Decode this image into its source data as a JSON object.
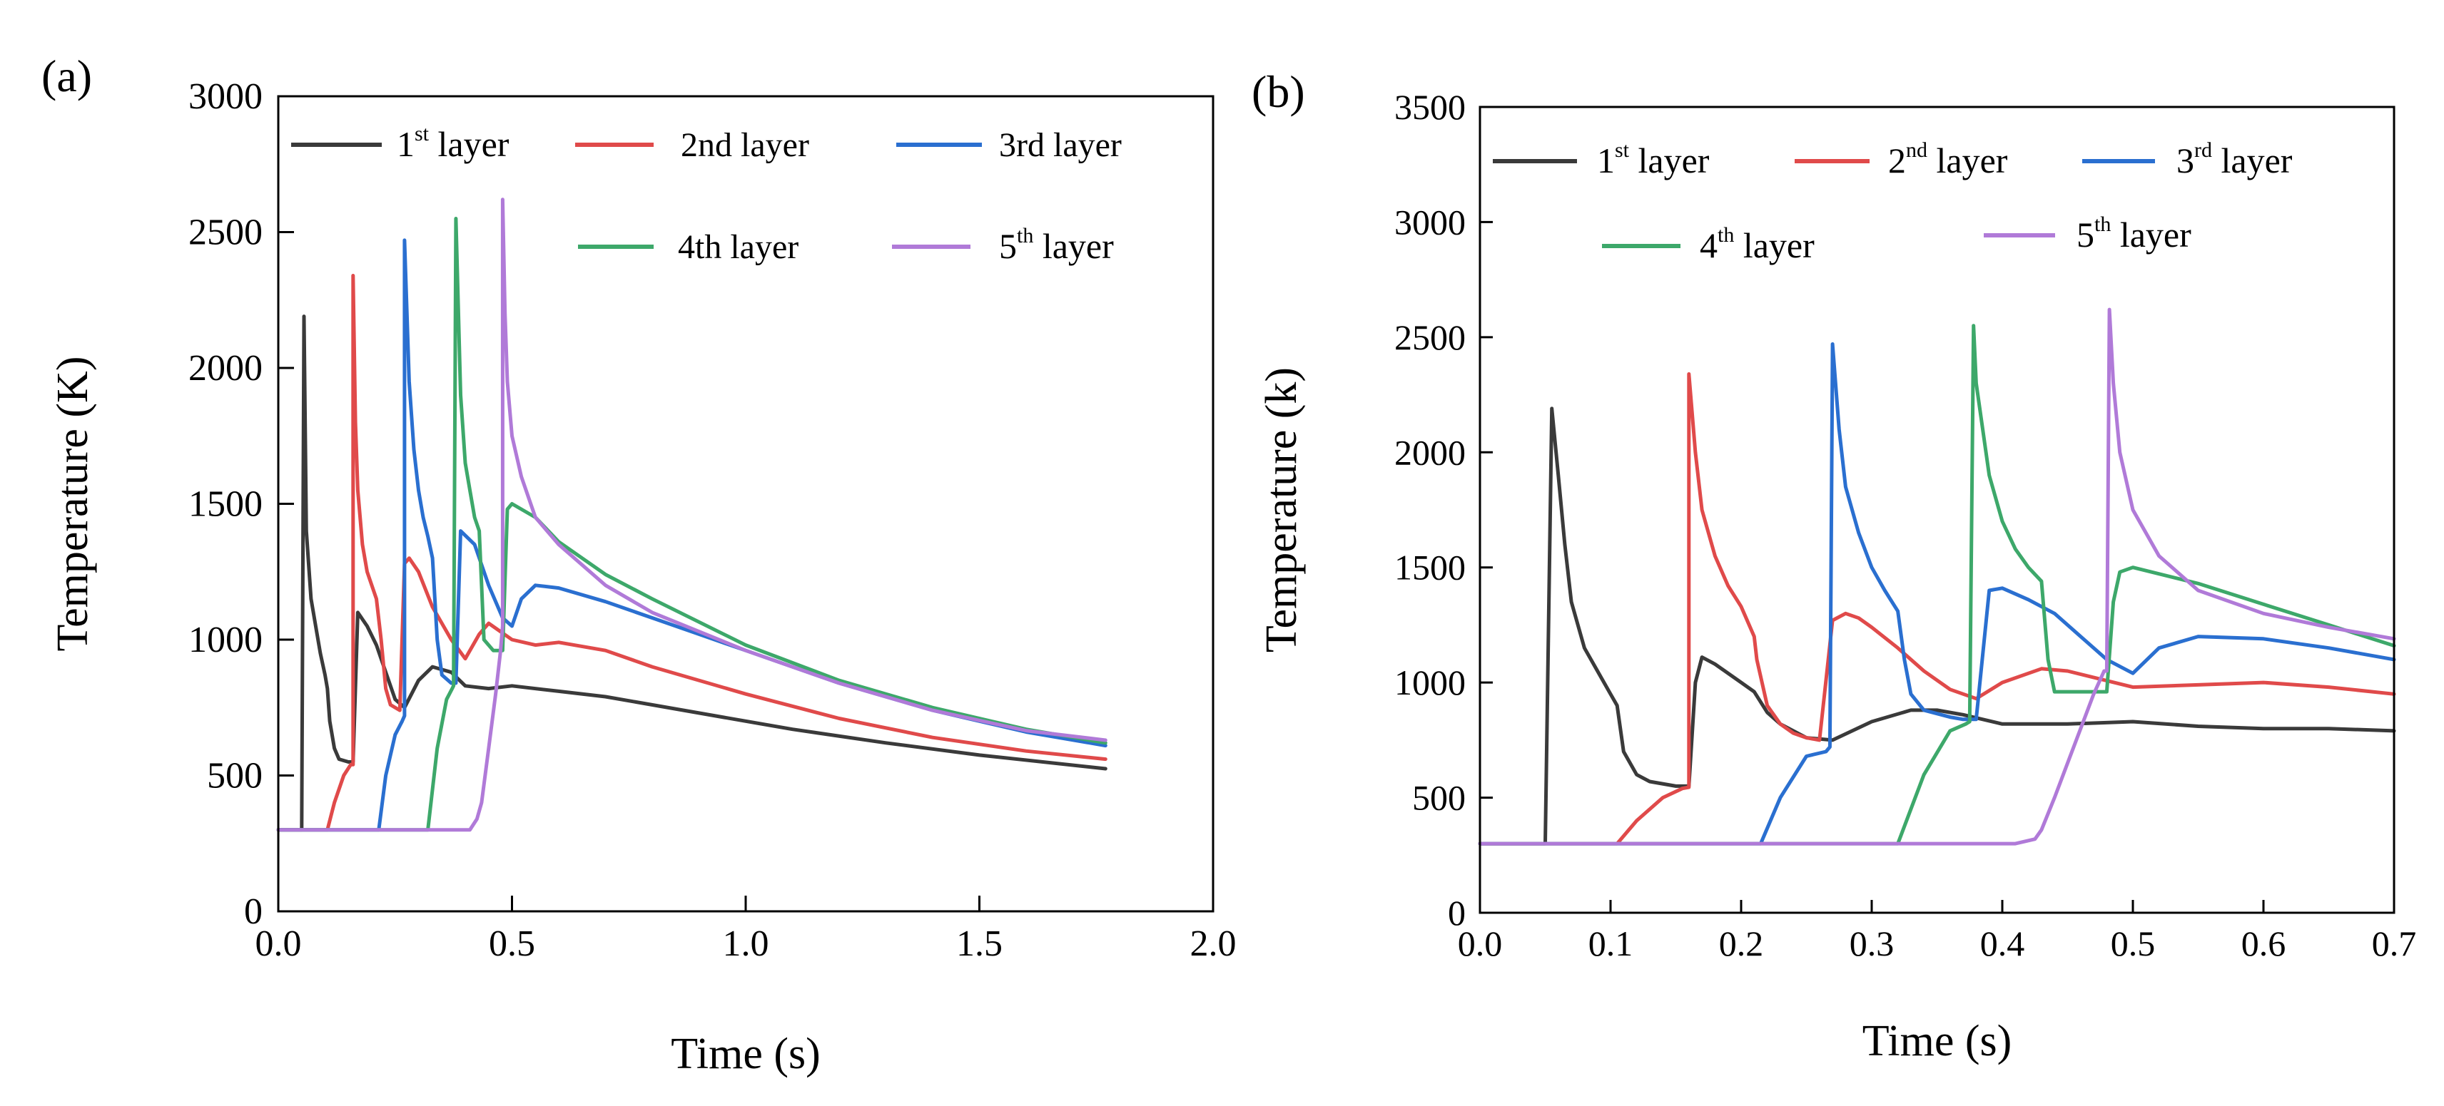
{
  "chart_data": [
    {
      "type": "line",
      "panel_label": "(a)",
      "xlabel": "Time (s)",
      "ylabel": "Temperature (K)",
      "xlim": [
        0,
        2.0
      ],
      "ylim": [
        0,
        3000
      ],
      "xticks": [
        "0.0",
        "0.5",
        "1.0",
        "1.5",
        "2.0"
      ],
      "yticks": [
        "0",
        "500",
        "1000",
        "1500",
        "2000",
        "2500",
        "3000"
      ],
      "legend": [
        {
          "base": "1",
          "sup": "st",
          "suffix": " layer",
          "color": "#3a3a3a"
        },
        {
          "base": "2nd layer",
          "sup": "",
          "suffix": "",
          "color": "#e04a4a"
        },
        {
          "base": "3rd layer",
          "sup": "",
          "suffix": "",
          "color": "#2a6fd0"
        },
        {
          "base": "4th layer",
          "sup": "",
          "suffix": "",
          "color": "#3da86a"
        },
        {
          "base": "5",
          "sup": "th",
          "suffix": " layer",
          "color": "#b07ad8"
        }
      ],
      "series": [
        {
          "name": "1st layer",
          "color": "#3a3a3a",
          "x": [
            0,
            0.05,
            0.05,
            0.055,
            0.06,
            0.07,
            0.08,
            0.09,
            0.1,
            0.105,
            0.11,
            0.12,
            0.13,
            0.15,
            0.16,
            0.17,
            0.19,
            0.21,
            0.23,
            0.25,
            0.27,
            0.3,
            0.33,
            0.37,
            0.4,
            0.45,
            0.5,
            0.6,
            0.7,
            0.9,
            1.1,
            1.3,
            1.5,
            1.77
          ],
          "y": [
            300,
            300,
            300,
            2190,
            1400,
            1150,
            1050,
            950,
            870,
            820,
            700,
            600,
            560,
            550,
            550,
            1100,
            1050,
            980,
            880,
            780,
            750,
            850,
            900,
            880,
            830,
            820,
            830,
            810,
            790,
            730,
            670,
            620,
            575,
            525
          ]
        },
        {
          "name": "2nd layer",
          "color": "#e04a4a",
          "x": [
            0,
            0.105,
            0.12,
            0.14,
            0.155,
            0.16,
            0.16,
            0.165,
            0.17,
            0.18,
            0.19,
            0.2,
            0.21,
            0.22,
            0.23,
            0.24,
            0.26,
            0.27,
            0.28,
            0.3,
            0.33,
            0.37,
            0.4,
            0.43,
            0.45,
            0.5,
            0.55,
            0.6,
            0.7,
            0.8,
            1.0,
            1.2,
            1.4,
            1.6,
            1.77
          ],
          "y": [
            300,
            300,
            400,
            500,
            540,
            540,
            2340,
            1800,
            1550,
            1350,
            1250,
            1200,
            1150,
            1000,
            820,
            760,
            740,
            1280,
            1300,
            1250,
            1120,
            1000,
            930,
            1020,
            1060,
            1000,
            980,
            990,
            960,
            900,
            800,
            710,
            640,
            590,
            560
          ]
        },
        {
          "name": "3rd layer",
          "color": "#2a6fd0",
          "x": [
            0,
            0.215,
            0.23,
            0.25,
            0.265,
            0.27,
            0.27,
            0.28,
            0.29,
            0.3,
            0.31,
            0.32,
            0.33,
            0.34,
            0.35,
            0.37,
            0.38,
            0.39,
            0.42,
            0.45,
            0.48,
            0.5,
            0.52,
            0.55,
            0.6,
            0.7,
            0.8,
            1.0,
            1.2,
            1.4,
            1.6,
            1.77
          ],
          "y": [
            300,
            300,
            500,
            650,
            700,
            720,
            2470,
            1950,
            1700,
            1550,
            1450,
            1380,
            1300,
            1000,
            870,
            840,
            840,
            1400,
            1350,
            1200,
            1080,
            1050,
            1150,
            1200,
            1190,
            1140,
            1080,
            960,
            840,
            740,
            660,
            610
          ]
        },
        {
          "name": "4th layer",
          "color": "#3da86a",
          "x": [
            0,
            0.32,
            0.34,
            0.36,
            0.372,
            0.375,
            0.38,
            0.39,
            0.4,
            0.41,
            0.42,
            0.43,
            0.44,
            0.46,
            0.48,
            0.49,
            0.5,
            0.55,
            0.6,
            0.7,
            0.8,
            1.0,
            1.2,
            1.4,
            1.6,
            1.77
          ],
          "y": [
            300,
            300,
            600,
            780,
            820,
            830,
            2550,
            1900,
            1650,
            1550,
            1450,
            1400,
            1000,
            960,
            960,
            1480,
            1500,
            1450,
            1360,
            1240,
            1150,
            980,
            850,
            750,
            670,
            620
          ]
        },
        {
          "name": "5th layer",
          "color": "#b07ad8",
          "x": [
            0,
            0.41,
            0.425,
            0.435,
            0.45,
            0.465,
            0.475,
            0.48,
            0.48,
            0.485,
            0.49,
            0.5,
            0.52,
            0.55,
            0.6,
            0.7,
            0.8,
            1.0,
            1.2,
            1.4,
            1.6,
            1.77
          ],
          "y": [
            300,
            300,
            340,
            400,
            600,
            800,
            950,
            1050,
            2620,
            2200,
            1950,
            1750,
            1600,
            1450,
            1350,
            1200,
            1100,
            960,
            840,
            740,
            665,
            630
          ]
        }
      ]
    },
    {
      "type": "line",
      "panel_label": "(b)",
      "xlabel": "Time (s)",
      "ylabel": "Temperature (k)",
      "xlim": [
        0,
        0.7
      ],
      "ylim": [
        0,
        3500
      ],
      "xticks": [
        "0.0",
        "0.1",
        "0.2",
        "0.3",
        "0.4",
        "0.5",
        "0.6",
        "0.7"
      ],
      "yticks": [
        "0",
        "500",
        "1000",
        "1500",
        "2000",
        "2500",
        "3000",
        "3500"
      ],
      "legend": [
        {
          "base": "1",
          "sup": "st",
          "suffix": " layer",
          "color": "#3a3a3a"
        },
        {
          "base": "2",
          "sup": "nd",
          "suffix": " layer",
          "color": "#e04a4a"
        },
        {
          "base": "3",
          "sup": "rd",
          "suffix": " layer",
          "color": "#2a6fd0"
        },
        {
          "base": "4",
          "sup": "th",
          "suffix": " layer",
          "color": "#3da86a"
        },
        {
          "base": "5",
          "sup": "th",
          "suffix": " layer",
          "color": "#b07ad8"
        }
      ],
      "series": [
        {
          "name": "1st layer",
          "color": "#3a3a3a",
          "x": [
            0,
            0.05,
            0.055,
            0.06,
            0.065,
            0.07,
            0.08,
            0.09,
            0.1,
            0.105,
            0.11,
            0.12,
            0.13,
            0.15,
            0.16,
            0.165,
            0.17,
            0.18,
            0.19,
            0.2,
            0.21,
            0.22,
            0.23,
            0.25,
            0.27,
            0.3,
            0.33,
            0.35,
            0.37,
            0.4,
            0.45,
            0.5,
            0.55,
            0.6,
            0.65,
            0.7
          ],
          "y": [
            300,
            300,
            2190,
            1900,
            1600,
            1350,
            1150,
            1050,
            950,
            900,
            700,
            600,
            570,
            550,
            550,
            1000,
            1110,
            1080,
            1040,
            1000,
            960,
            870,
            820,
            760,
            750,
            830,
            880,
            880,
            860,
            820,
            820,
            830,
            810,
            800,
            800,
            790
          ]
        },
        {
          "name": "2nd layer",
          "color": "#e04a4a",
          "x": [
            0,
            0.105,
            0.12,
            0.14,
            0.155,
            0.16,
            0.16,
            0.165,
            0.17,
            0.18,
            0.19,
            0.2,
            0.21,
            0.212,
            0.22,
            0.23,
            0.24,
            0.25,
            0.26,
            0.27,
            0.28,
            0.29,
            0.3,
            0.32,
            0.34,
            0.36,
            0.38,
            0.4,
            0.43,
            0.45,
            0.5,
            0.55,
            0.6,
            0.65,
            0.7
          ],
          "y": [
            300,
            300,
            400,
            500,
            540,
            545,
            2340,
            2000,
            1750,
            1550,
            1420,
            1330,
            1200,
            1100,
            900,
            820,
            780,
            760,
            750,
            1270,
            1300,
            1280,
            1240,
            1150,
            1050,
            970,
            930,
            1000,
            1060,
            1050,
            980,
            990,
            1000,
            980,
            950
          ]
        },
        {
          "name": "3rd layer",
          "color": "#2a6fd0",
          "x": [
            0,
            0.215,
            0.23,
            0.25,
            0.265,
            0.268,
            0.27,
            0.275,
            0.28,
            0.29,
            0.3,
            0.31,
            0.32,
            0.325,
            0.33,
            0.34,
            0.36,
            0.37,
            0.38,
            0.39,
            0.4,
            0.42,
            0.44,
            0.46,
            0.48,
            0.5,
            0.52,
            0.55,
            0.6,
            0.65,
            0.7
          ],
          "y": [
            300,
            300,
            500,
            680,
            700,
            720,
            2470,
            2100,
            1850,
            1650,
            1500,
            1400,
            1310,
            1100,
            950,
            880,
            850,
            840,
            840,
            1400,
            1410,
            1360,
            1300,
            1200,
            1100,
            1040,
            1150,
            1200,
            1190,
            1150,
            1100
          ]
        },
        {
          "name": "4th layer",
          "color": "#3da86a",
          "x": [
            0,
            0.32,
            0.34,
            0.36,
            0.372,
            0.375,
            0.378,
            0.38,
            0.39,
            0.4,
            0.41,
            0.42,
            0.43,
            0.435,
            0.44,
            0.46,
            0.48,
            0.485,
            0.49,
            0.5,
            0.55,
            0.6,
            0.65,
            0.7
          ],
          "y": [
            300,
            300,
            600,
            790,
            820,
            830,
            2550,
            2300,
            1900,
            1700,
            1580,
            1500,
            1440,
            1100,
            960,
            960,
            960,
            1350,
            1480,
            1500,
            1430,
            1340,
            1250,
            1160
          ]
        },
        {
          "name": "5th layer",
          "color": "#b07ad8",
          "x": [
            0,
            0.41,
            0.425,
            0.43,
            0.44,
            0.45,
            0.46,
            0.47,
            0.478,
            0.48,
            0.482,
            0.485,
            0.49,
            0.5,
            0.52,
            0.55,
            0.6,
            0.65,
            0.7
          ],
          "y": [
            300,
            300,
            320,
            360,
            500,
            650,
            800,
            950,
            1050,
            1050,
            2620,
            2300,
            2000,
            1750,
            1550,
            1400,
            1300,
            1240,
            1190
          ]
        }
      ]
    }
  ]
}
